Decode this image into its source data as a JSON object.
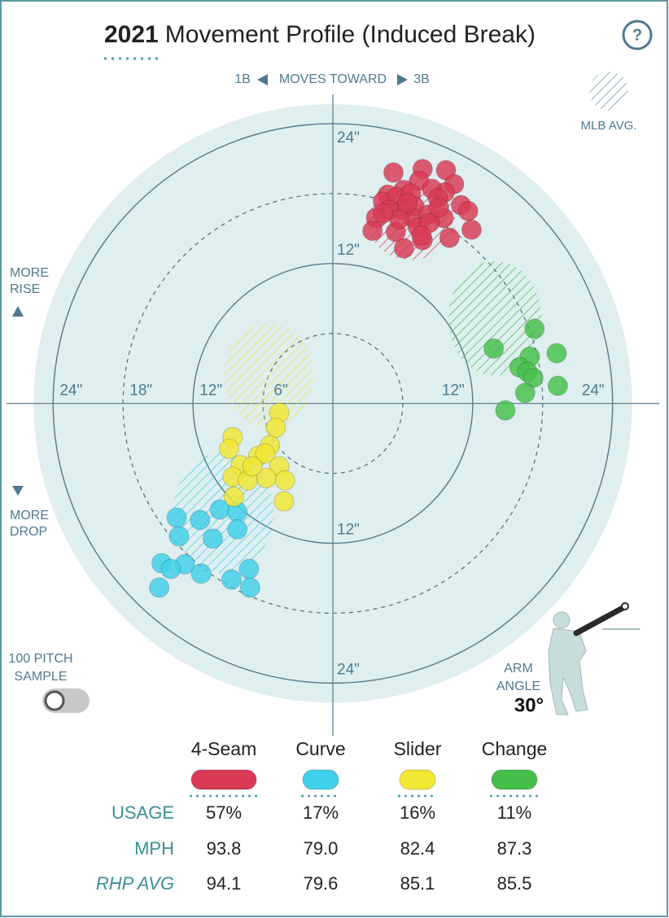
{
  "title": {
    "year": "2021",
    "text": "Movement Profile (Induced Break)"
  },
  "help": "?",
  "direction": {
    "left": "1B",
    "label": "MOVES TOWARD",
    "right": "3B"
  },
  "mlb_avg_label": "MLB AVG.",
  "rise_label": [
    "MORE",
    "RISE"
  ],
  "drop_label": [
    "MORE",
    "DROP"
  ],
  "sample_toggle": [
    "100 PITCH",
    "SAMPLE"
  ],
  "arm_angle": {
    "label": [
      "ARM",
      "ANGLE"
    ],
    "value": "30°"
  },
  "chart_data": {
    "type": "scatter",
    "xlim": [
      -28,
      28
    ],
    "ylim": [
      -28.5,
      26.5
    ],
    "xticks": [
      {
        "value": -24,
        "label": "24\""
      },
      {
        "value": -18,
        "label": "18\""
      },
      {
        "value": -12,
        "label": "12\""
      },
      {
        "value": -6,
        "label": "6\""
      },
      {
        "value": 12,
        "label": "12\""
      },
      {
        "value": 24,
        "label": "24\""
      }
    ],
    "yticks": [
      {
        "value": 24,
        "label": "24\""
      },
      {
        "value": 12,
        "label": "12\""
      },
      {
        "value": -12,
        "label": "12\""
      },
      {
        "value": -24,
        "label": "24\""
      }
    ],
    "dashed_rings": [
      6,
      18
    ],
    "series": [
      {
        "name": "4-Seam",
        "color": "#d93a55",
        "x": [
          5.2,
          7.7,
          9.7,
          10.4,
          9.6,
          7.4,
          6.1,
          4.7,
          4.3,
          5.5,
          6.7,
          8.5,
          9.0,
          7.0,
          5.9,
          4.8,
          3.7,
          3.4,
          5.4,
          6.9,
          8.2,
          9.5,
          11.0,
          11.6,
          11.9,
          10.0,
          7.7,
          6.1,
          7.3,
          8.3,
          5.7,
          9.1,
          6.4,
          7.6,
          4.3
        ],
        "y": [
          19.8,
          20.1,
          20.0,
          18.8,
          18.1,
          19.1,
          18.3,
          17.9,
          17.3,
          17.7,
          18.0,
          18.4,
          17.6,
          16.9,
          16.6,
          16.6,
          15.9,
          14.8,
          14.7,
          15.9,
          16.2,
          15.9,
          17.0,
          16.5,
          14.9,
          14.2,
          14.0,
          13.3,
          15.1,
          15.5,
          15.8,
          16.8,
          17.2,
          14.4,
          16.3
        ],
        "mlb_avg": {
          "x": 6.7,
          "y": 15.8,
          "width": 3.8,
          "height": 3.5
        }
      },
      {
        "name": "Curve",
        "color": "#3fd0ea",
        "x": [
          -13.4,
          -11.4,
          -9.7,
          -8.2,
          -13.2,
          -10.3,
          -8.2,
          -14.7,
          -12.7,
          -13.9,
          -11.3,
          -8.7,
          -7.2,
          -14.9,
          -7.1
        ],
        "y": [
          -9.8,
          -10.0,
          -9.1,
          -9.3,
          -11.4,
          -11.6,
          -10.8,
          -13.7,
          -13.8,
          -14.2,
          -14.6,
          -15.1,
          -14.2,
          -15.8,
          -15.8
        ],
        "mlb_avg": {
          "x": -9.4,
          "y": -9.4,
          "width": 4.3,
          "height": 5.2
        }
      },
      {
        "name": "Slider",
        "color": "#f2e733",
        "x": [
          -4.6,
          -4.9,
          -8.6,
          -8.9,
          -5.4,
          -6.4,
          -5.8,
          -7.9,
          -4.6,
          -8.6,
          -7.3,
          -5.7,
          -4.1,
          -8.5,
          -4.2,
          -6.9
        ],
        "y": [
          -0.8,
          -2.1,
          -2.9,
          -3.9,
          -3.6,
          -4.5,
          -4.3,
          -5.3,
          -5.4,
          -6.3,
          -6.6,
          -6.4,
          -6.6,
          -8.0,
          -8.4,
          -5.4
        ],
        "mlb_avg": {
          "x": -5.5,
          "y": 2.4,
          "width": 3.8,
          "height": 4.5
        }
      },
      {
        "name": "Change",
        "color": "#45bf4a",
        "x": [
          17.3,
          13.8,
          16.9,
          19.2,
          16.0,
          16.7,
          17.2,
          19.3,
          16.5,
          14.8
        ],
        "y": [
          6.4,
          4.7,
          4.0,
          4.3,
          3.1,
          2.7,
          2.2,
          1.5,
          0.9,
          -0.6
        ],
        "mlb_avg": {
          "x": 13.9,
          "y": 7.3,
          "width": 4.0,
          "height": 4.9
        }
      }
    ]
  },
  "table": {
    "row_labels": [
      "USAGE",
      "MPH",
      "RHP AVG"
    ],
    "rows": [
      [
        "57%",
        "17%",
        "16%",
        "11%"
      ],
      [
        "93.8",
        "79.0",
        "82.4",
        "87.3"
      ],
      [
        "94.1",
        "79.6",
        "85.1",
        "85.5"
      ]
    ]
  }
}
